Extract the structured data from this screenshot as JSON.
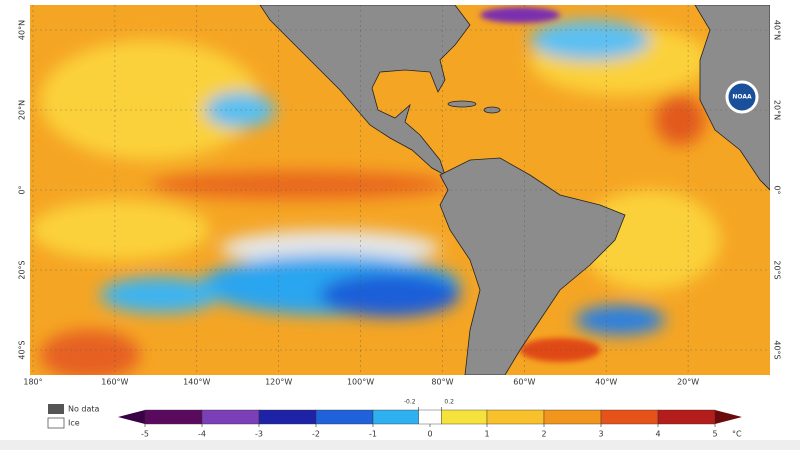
{
  "map": {
    "lon_lim": [
      -180,
      0
    ],
    "lat_lim": [
      -46.25,
      46.25
    ],
    "lon_ticks": [
      {
        "value": -180,
        "label": "180°"
      },
      {
        "value": -160,
        "label": "160°W"
      },
      {
        "value": -140,
        "label": "140°W"
      },
      {
        "value": -120,
        "label": "120°W"
      },
      {
        "value": -100,
        "label": "100°W"
      },
      {
        "value": -80,
        "label": "80°W"
      },
      {
        "value": -60,
        "label": "60°W"
      },
      {
        "value": -40,
        "label": "40°W"
      },
      {
        "value": -20,
        "label": "20°W"
      }
    ],
    "lat_ticks": [
      {
        "value": 40,
        "label": "40°N"
      },
      {
        "value": 20,
        "label": "20°N"
      },
      {
        "value": 0,
        "label": "0°"
      },
      {
        "value": -20,
        "label": "20°S"
      },
      {
        "value": -40,
        "label": "40°S"
      }
    ],
    "grid": true,
    "logo_text": "NOAA"
  },
  "legend": {
    "no_data": "No data",
    "ice": "Ice"
  },
  "colorbar": {
    "lim": [
      -5,
      5
    ],
    "ticks": [
      -5,
      -4,
      -3,
      -2,
      -1,
      0,
      1,
      2,
      3,
      4,
      5
    ],
    "inner_ticks": [
      -0.2,
      0.2
    ],
    "unit": "°C",
    "bounds": [
      -5,
      -4,
      -3,
      -2,
      -1,
      -0.2,
      0.2,
      1,
      2,
      3,
      4,
      5
    ],
    "colors": [
      "#5a0a5e",
      "#7b3fb8",
      "#1e22a6",
      "#1f62d9",
      "#2fb0ef",
      "#ffffff",
      "#f6e23c",
      "#f8c02b",
      "#f2951d",
      "#e6531a",
      "#b51c1c"
    ],
    "low_color": "#3a0045",
    "high_color": "#6a0a0a"
  }
}
